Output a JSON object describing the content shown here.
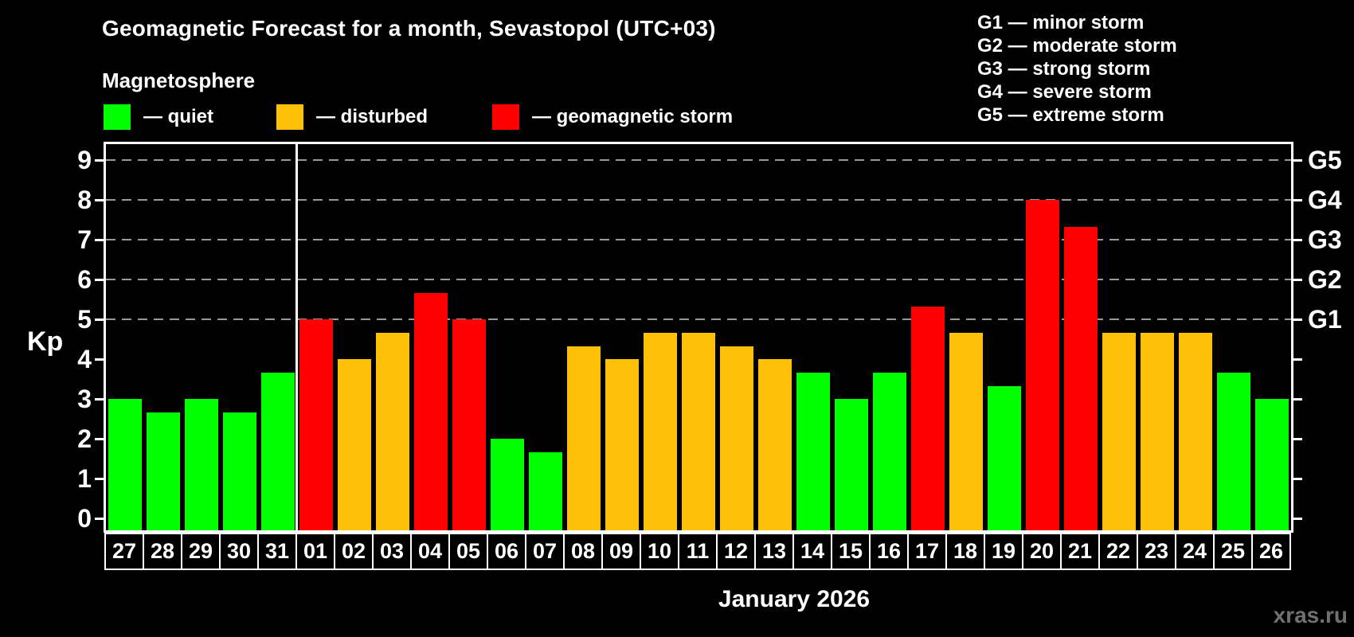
{
  "header": {
    "title": "Geomagnetic Forecast for a month, Sevastopol (UTC+03)",
    "subtitle": "Magnetosphere"
  },
  "legend": {
    "items": [
      {
        "name": "quiet",
        "label": "— quiet",
        "color": "#00ff00"
      },
      {
        "name": "disturbed",
        "label": "— disturbed",
        "color": "#ffc107"
      },
      {
        "name": "storm",
        "label": "— geomagnetic storm",
        "color": "#ff0000"
      }
    ]
  },
  "g_scale_legend": {
    "items": [
      {
        "label": "G1 — minor storm"
      },
      {
        "label": "G2 — moderate storm"
      },
      {
        "label": "G3 — strong storm"
      },
      {
        "label": "G4 — severe storm"
      },
      {
        "label": "G5 — extreme storm"
      }
    ]
  },
  "axes": {
    "y_label": "Kp",
    "y_ticks": [
      0,
      1,
      2,
      3,
      4,
      5,
      6,
      7,
      8,
      9
    ],
    "right_labels": [
      {
        "label": "G1",
        "kp": 5
      },
      {
        "label": "G2",
        "kp": 6
      },
      {
        "label": "G3",
        "kp": 7
      },
      {
        "label": "G4",
        "kp": 8
      },
      {
        "label": "G5",
        "kp": 9
      }
    ],
    "x_label": "January 2026"
  },
  "footer": {
    "watermark": "xras.ru"
  },
  "chart_data": {
    "type": "bar",
    "title": "Geomagnetic Forecast for a month, Sevastopol (UTC+03)",
    "ylabel": "Kp",
    "xlabel": "January 2026",
    "ylim": [
      -0.3,
      9.4
    ],
    "gridlines_at": [
      5,
      6,
      7,
      8,
      9
    ],
    "grid_style": "dashed horizontal, gray",
    "legend_position": "top",
    "divider_after_index": 4,
    "categories": [
      "27",
      "28",
      "29",
      "30",
      "31",
      "01",
      "02",
      "03",
      "04",
      "05",
      "06",
      "07",
      "08",
      "09",
      "10",
      "11",
      "12",
      "13",
      "14",
      "15",
      "16",
      "17",
      "18",
      "19",
      "20",
      "21",
      "22",
      "23",
      "24",
      "25",
      "26"
    ],
    "values": [
      3.0,
      2.67,
      3.0,
      2.67,
      3.67,
      5.0,
      4.0,
      4.67,
      5.67,
      5.0,
      2.0,
      1.67,
      4.33,
      4.0,
      4.67,
      4.67,
      4.33,
      4.0,
      3.67,
      3.0,
      3.67,
      5.33,
      4.67,
      3.33,
      8.0,
      7.33,
      4.67,
      4.67,
      4.67,
      3.67,
      3.0
    ],
    "statuses": [
      "quiet",
      "quiet",
      "quiet",
      "quiet",
      "quiet",
      "storm",
      "disturbed",
      "disturbed",
      "storm",
      "storm",
      "quiet",
      "quiet",
      "disturbed",
      "disturbed",
      "disturbed",
      "disturbed",
      "disturbed",
      "disturbed",
      "quiet",
      "quiet",
      "quiet",
      "storm",
      "disturbed",
      "quiet",
      "storm",
      "storm",
      "disturbed",
      "disturbed",
      "disturbed",
      "quiet",
      "quiet"
    ],
    "status_colors": {
      "quiet": "#00ff00",
      "disturbed": "#ffc107",
      "storm": "#ff0000"
    }
  }
}
